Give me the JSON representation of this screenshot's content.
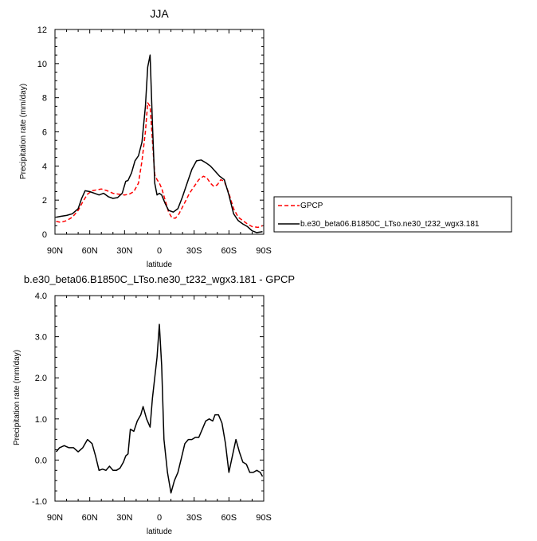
{
  "chart_data": [
    {
      "type": "line",
      "title": "JJA",
      "xlabel": "latitude",
      "ylabel": "Precipitation rate (mm/day)",
      "xlim": [
        90,
        -90
      ],
      "ylim": [
        0,
        12
      ],
      "x_ticks": [
        90,
        60,
        30,
        0,
        -30,
        -60,
        -90
      ],
      "x_tick_labels": [
        "90N",
        "60N",
        "30N",
        "0",
        "30S",
        "60S",
        "90S"
      ],
      "y_ticks": [
        0,
        2,
        4,
        6,
        8,
        10,
        12
      ],
      "y_tick_labels": [
        "0",
        "2",
        "4",
        "6",
        "8",
        "10",
        "12"
      ],
      "legend_position": "right",
      "series": [
        {
          "name": "GPCP",
          "color": "#ff0000",
          "dash": "dashed",
          "x": [
            89,
            85,
            80,
            75,
            70,
            66,
            62,
            58,
            54,
            50,
            45,
            40,
            35,
            30,
            26,
            22,
            18,
            15,
            12,
            10,
            8,
            6,
            4,
            2,
            0,
            -2,
            -5,
            -8,
            -11,
            -14,
            -17,
            -20,
            -23,
            -26,
            -30,
            -34,
            -38,
            -41,
            -44,
            -47,
            -50,
            -53,
            -56,
            -60,
            -64,
            -68,
            -72,
            -76,
            -80,
            -85,
            -89
          ],
          "y": [
            0.75,
            0.7,
            0.8,
            1.0,
            1.4,
            1.9,
            2.35,
            2.55,
            2.6,
            2.65,
            2.55,
            2.4,
            2.35,
            2.3,
            2.35,
            2.5,
            3.0,
            4.3,
            6.0,
            7.7,
            7.5,
            5.5,
            3.5,
            3.2,
            3.0,
            2.7,
            2.0,
            1.3,
            0.95,
            0.95,
            1.2,
            1.6,
            2.0,
            2.4,
            2.8,
            3.2,
            3.4,
            3.3,
            3.0,
            2.8,
            2.9,
            3.2,
            3.1,
            2.4,
            1.5,
            1.0,
            0.8,
            0.6,
            0.45,
            0.4,
            0.5
          ]
        },
        {
          "name": "b.e30_beta06.B1850C_LTso.ne30_t232_wgx3.181",
          "color": "#000000",
          "dash": "solid",
          "x": [
            89,
            85,
            80,
            75,
            70,
            67,
            64,
            60,
            56,
            52,
            48,
            44,
            40,
            36,
            32,
            29,
            27,
            24,
            21,
            18,
            15,
            12,
            10,
            8,
            6,
            4,
            2,
            0,
            -2,
            -5,
            -8,
            -12,
            -16,
            -20,
            -24,
            -28,
            -32,
            -36,
            -40,
            -44,
            -48,
            -52,
            -56,
            -60,
            -64,
            -68,
            -72,
            -76,
            -80,
            -84,
            -89
          ],
          "y": [
            1.0,
            1.05,
            1.1,
            1.2,
            1.5,
            2.1,
            2.55,
            2.5,
            2.4,
            2.3,
            2.4,
            2.2,
            2.1,
            2.15,
            2.4,
            3.1,
            3.15,
            3.6,
            4.3,
            4.6,
            5.4,
            7.5,
            9.8,
            10.5,
            6.5,
            3.0,
            2.3,
            2.4,
            2.3,
            1.8,
            1.4,
            1.3,
            1.5,
            2.2,
            3.0,
            3.8,
            4.3,
            4.35,
            4.2,
            4.0,
            3.7,
            3.4,
            3.2,
            2.3,
            1.2,
            0.8,
            0.6,
            0.45,
            0.2,
            0.1,
            0.15
          ]
        }
      ]
    },
    {
      "type": "line",
      "title": "b.e30_beta06.B1850C_LTso.ne30_t232_wgx3.181 - GPCP",
      "xlabel": "latitude",
      "ylabel": "Precipitation rate (mm/day)",
      "xlim": [
        90,
        -90
      ],
      "ylim": [
        -1.0,
        4.0
      ],
      "x_ticks": [
        90,
        60,
        30,
        0,
        -30,
        -60,
        -90
      ],
      "x_tick_labels": [
        "90N",
        "60N",
        "30N",
        "0",
        "30S",
        "60S",
        "90S"
      ],
      "y_ticks": [
        -1.0,
        0.0,
        1.0,
        2.0,
        3.0,
        4.0
      ],
      "y_tick_labels": [
        "-1.0",
        "0.0",
        "1.0",
        "2.0",
        "3.0",
        "4.0"
      ],
      "series": [
        {
          "color": "#000000",
          "dash": "solid",
          "x": [
            89,
            86,
            82,
            78,
            74,
            70,
            66,
            62,
            58,
            55,
            52,
            49,
            46,
            43,
            40,
            37,
            34,
            31,
            29,
            27,
            25,
            22,
            19,
            16,
            14,
            11,
            8,
            6,
            4,
            2,
            0,
            -2,
            -4,
            -7,
            -10,
            -13,
            -16,
            -19,
            -22,
            -25,
            -28,
            -31,
            -34,
            -37,
            -40,
            -43,
            -46,
            -48,
            -51,
            -54,
            -57,
            -60,
            -63,
            -66,
            -69,
            -72,
            -75,
            -78,
            -81,
            -84,
            -87,
            -89
          ],
          "y": [
            0.2,
            0.3,
            0.35,
            0.3,
            0.3,
            0.2,
            0.3,
            0.5,
            0.4,
            0.1,
            -0.25,
            -0.22,
            -0.25,
            -0.15,
            -0.25,
            -0.25,
            -0.2,
            -0.05,
            0.1,
            0.15,
            0.75,
            0.7,
            0.95,
            1.1,
            1.3,
            1.0,
            0.8,
            1.5,
            2.0,
            2.5,
            3.3,
            2.3,
            0.5,
            -0.3,
            -0.8,
            -0.5,
            -0.3,
            0.05,
            0.4,
            0.5,
            0.5,
            0.55,
            0.55,
            0.75,
            0.95,
            1.0,
            0.95,
            1.1,
            1.1,
            0.9,
            0.4,
            -0.3,
            0.1,
            0.5,
            0.2,
            -0.05,
            -0.1,
            -0.3,
            -0.3,
            -0.25,
            -0.3,
            -0.4
          ]
        }
      ]
    }
  ]
}
